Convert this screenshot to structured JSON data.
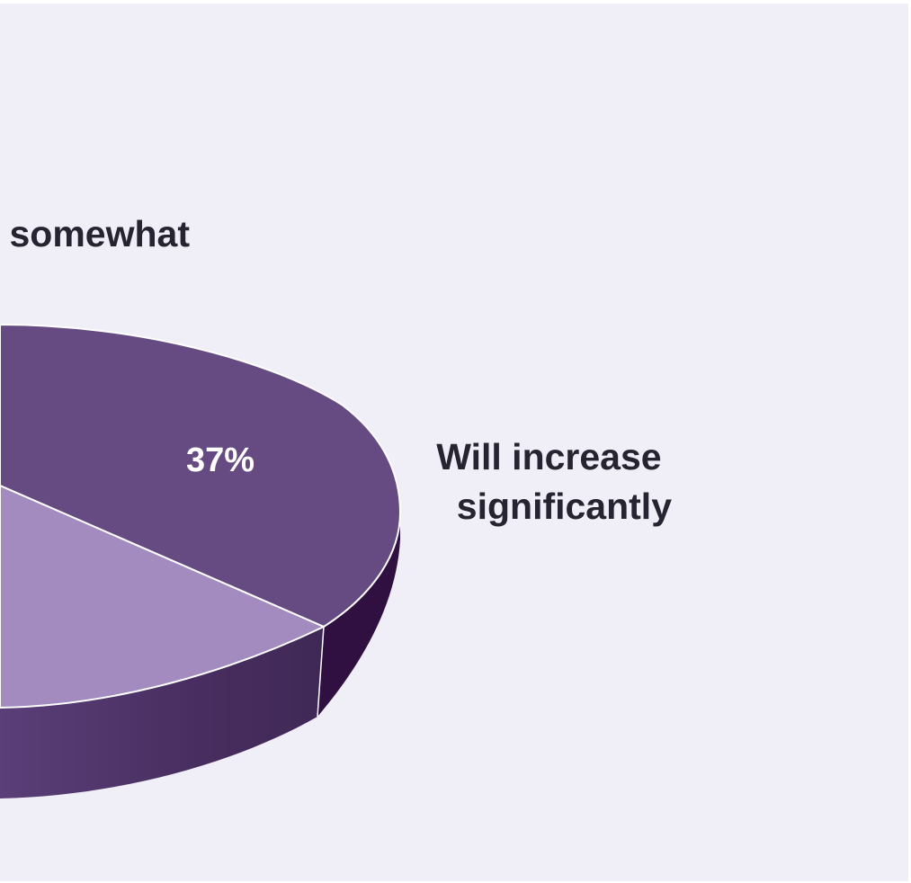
{
  "chart_data": {
    "type": "pie",
    "style": "3d",
    "slices": [
      {
        "label": "Will increase significantly",
        "label_lines": [
          "Will increase",
          "significantly"
        ],
        "value": 37,
        "value_label": "37%",
        "color": "#654b82",
        "side_color": "#2f1040"
      },
      {
        "label": "…somewhat",
        "label_lines": [
          "somewhat"
        ],
        "value": null,
        "value_label": "",
        "color": "#a38bbf",
        "side_color": "#452c5c"
      }
    ],
    "title": "",
    "legend": "none",
    "background": "#f0eef6"
  }
}
